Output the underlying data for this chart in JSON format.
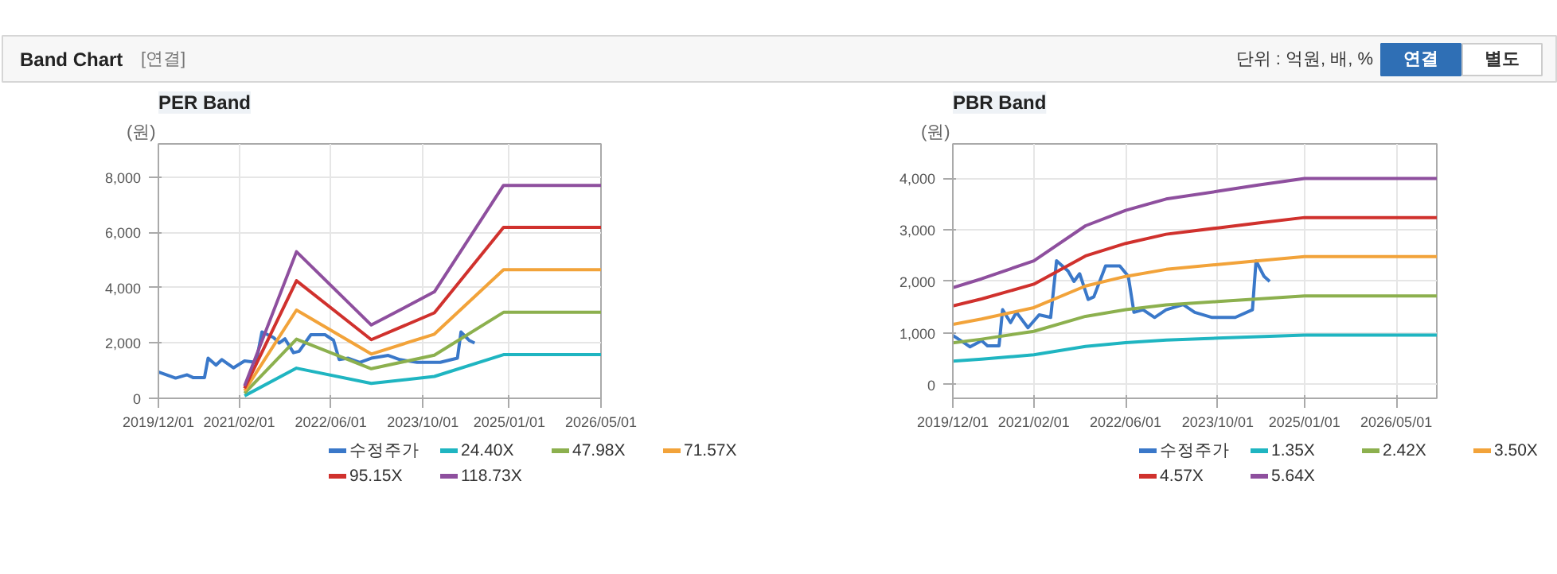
{
  "chart_data": [
    {
      "type": "other",
      "title": "Band Chart",
      "annotations": [
        "[연결]",
        "단위 : 억원, 배, %",
        "연결",
        "별도"
      ]
    },
    {
      "type": "line",
      "title": "PER Band",
      "ylabel": "(원)",
      "grid": true,
      "legend": "bottom",
      "xlim": [
        "2019-12-01",
        "2026-05-01"
      ],
      "ylim": [
        0,
        9200
      ],
      "xticks": [
        {
          "value": "2019-12-01",
          "label": "2019/12/01"
        },
        {
          "value": "2021-02-01",
          "label": "2021/02/01"
        },
        {
          "value": "2022-06-01",
          "label": "2022/06/01"
        },
        {
          "value": "2023-10-01",
          "label": "2023/10/01"
        },
        {
          "value": "2025-01-01",
          "label": "2025/01/01"
        },
        {
          "value": "2026-05-01",
          "label": "2026/05/01"
        }
      ],
      "yticks": [
        0,
        {
          "value": 2000,
          "label": "2,000"
        },
        {
          "value": 4000,
          "label": "4,000"
        },
        {
          "value": 6000,
          "label": "6,000"
        },
        {
          "value": 8000,
          "label": "8,000"
        }
      ],
      "series": [
        {
          "name": "수정주가",
          "color": "#3a78c9",
          "x": [
            "2019-12-01",
            "2020-02-01",
            "2020-03-01",
            "2020-05-01",
            "2020-06-01",
            "2020-08-01",
            "2020-08-20",
            "2020-10-01",
            "2020-11-01",
            "2021-01-01",
            "2021-03-01",
            "2021-05-01",
            "2021-06-01",
            "2021-08-01",
            "2021-09-01",
            "2021-10-01",
            "2021-11-15",
            "2021-12-15",
            "2022-02-15",
            "2022-05-01",
            "2022-06-15",
            "2022-07-15",
            "2022-09-01",
            "2022-11-01",
            "2023-01-01",
            "2023-04-01",
            "2023-06-01",
            "2023-09-01",
            "2024-01-01",
            "2024-04-01",
            "2024-04-20",
            "2024-06-01",
            "2024-07-01"
          ],
          "values": [
            950,
            800,
            730,
            850,
            750,
            750,
            1450,
            1200,
            1400,
            1100,
            1350,
            1300,
            2400,
            2200,
            2000,
            2150,
            1650,
            1700,
            2300,
            2300,
            2100,
            1400,
            1450,
            1300,
            1450,
            1550,
            1400,
            1300,
            1300,
            1450,
            2400,
            2100,
            2000
          ]
        },
        {
          "name": "24.40X",
          "color": "#1fb5c1",
          "x": [
            "2021-03-01",
            "2021-12-01",
            "2023-01-01",
            "2023-12-01",
            "2024-12-01",
            "2026-05-01"
          ],
          "values": [
            90,
            1090,
            540,
            790,
            1580,
            1580
          ]
        },
        {
          "name": "47.98X",
          "color": "#8cb04e",
          "x": [
            "2021-03-01",
            "2021-12-01",
            "2023-01-01",
            "2023-12-01",
            "2024-12-01",
            "2026-05-01"
          ],
          "values": [
            180,
            2140,
            1070,
            1560,
            3110,
            3110
          ]
        },
        {
          "name": "71.57X",
          "color": "#f2a33a",
          "x": [
            "2021-03-01",
            "2021-12-01",
            "2023-01-01",
            "2023-12-01",
            "2024-12-01",
            "2026-05-01"
          ],
          "values": [
            270,
            3190,
            1600,
            2320,
            4650,
            4650
          ]
        },
        {
          "name": "95.15X",
          "color": "#d0312d",
          "x": [
            "2021-03-01",
            "2021-12-01",
            "2023-01-01",
            "2023-12-01",
            "2024-12-01",
            "2026-05-01"
          ],
          "values": [
            360,
            4250,
            2120,
            3090,
            6180,
            6180
          ]
        },
        {
          "name": "118.73X",
          "color": "#8e4f9e",
          "x": [
            "2021-03-01",
            "2021-12-01",
            "2023-01-01",
            "2023-12-01",
            "2024-12-01",
            "2026-05-01"
          ],
          "values": [
            450,
            5300,
            2650,
            3850,
            7700,
            7700
          ]
        }
      ]
    },
    {
      "type": "line",
      "title": "PBR Band",
      "ylabel": "(원)",
      "grid": true,
      "legend": "bottom",
      "xlim": [
        "2019-12-01",
        "2026-12-01"
      ],
      "ylim": [
        -270,
        4670
      ],
      "xticks": [
        {
          "value": "2019-12-01",
          "label": "2019/12/01"
        },
        {
          "value": "2021-02-01",
          "label": "2021/02/01"
        },
        {
          "value": "2022-06-01",
          "label": "2022/06/01"
        },
        {
          "value": "2023-10-01",
          "label": "2023/10/01"
        },
        {
          "value": "2025-01-01",
          "label": "2025/01/01"
        },
        {
          "value": "2026-05-01",
          "label": "2026/05/01"
        }
      ],
      "yticks": [
        0,
        {
          "value": 1000,
          "label": "1,000"
        },
        {
          "value": 2000,
          "label": "2,000"
        },
        {
          "value": 3000,
          "label": "3,000"
        },
        {
          "value": 4000,
          "label": "4,000"
        }
      ],
      "series": [
        {
          "name": "수정주가",
          "color": "#3a78c9",
          "x": [
            "2019-12-01",
            "2020-02-01",
            "2020-03-01",
            "2020-05-01",
            "2020-06-01",
            "2020-08-01",
            "2020-08-20",
            "2020-10-01",
            "2020-11-01",
            "2021-01-01",
            "2021-03-01",
            "2021-05-01",
            "2021-06-01",
            "2021-08-01",
            "2021-09-01",
            "2021-10-01",
            "2021-11-15",
            "2021-12-15",
            "2022-02-15",
            "2022-05-01",
            "2022-06-15",
            "2022-07-15",
            "2022-09-01",
            "2022-11-01",
            "2023-01-01",
            "2023-04-01",
            "2023-06-01",
            "2023-09-01",
            "2024-01-01",
            "2024-04-01",
            "2024-04-20",
            "2024-06-01",
            "2024-07-01"
          ],
          "values": [
            950,
            800,
            730,
            850,
            750,
            750,
            1450,
            1200,
            1400,
            1100,
            1350,
            1300,
            2400,
            2200,
            2000,
            2150,
            1650,
            1700,
            2300,
            2300,
            2100,
            1400,
            1450,
            1300,
            1450,
            1550,
            1400,
            1300,
            1300,
            1450,
            2400,
            2100,
            2000
          ]
        },
        {
          "name": "1.35X",
          "color": "#1fb5c1",
          "x": [
            "2019-12-01",
            "2020-05-01",
            "2021-02-01",
            "2021-11-01",
            "2022-06-01",
            "2023-01-01",
            "2023-10-01",
            "2024-05-01",
            "2025-01-01",
            "2026-12-01"
          ],
          "values": [
            450,
            490,
            575,
            737,
            809,
            861,
            898,
            926,
            957,
            957
          ]
        },
        {
          "name": "2.42X",
          "color": "#8cb04e",
          "x": [
            "2019-12-01",
            "2020-05-01",
            "2021-02-01",
            "2021-11-01",
            "2022-06-01",
            "2023-01-01",
            "2023-10-01",
            "2024-05-01",
            "2025-01-01",
            "2026-12-01"
          ],
          "values": [
            806,
            878,
            1031,
            1321,
            1450,
            1544,
            1609,
            1660,
            1716,
            1716
          ]
        },
        {
          "name": "3.50X",
          "color": "#f2a33a",
          "x": [
            "2019-12-01",
            "2020-05-01",
            "2021-02-01",
            "2021-11-01",
            "2022-06-01",
            "2023-01-01",
            "2023-10-01",
            "2024-05-01",
            "2025-01-01",
            "2026-12-01"
          ],
          "values": [
            1166,
            1271,
            1491,
            1911,
            2097,
            2233,
            2328,
            2401,
            2482,
            2482
          ]
        },
        {
          "name": "4.57X",
          "color": "#d0312d",
          "x": [
            "2019-12-01",
            "2020-05-01",
            "2021-02-01",
            "2021-11-01",
            "2022-06-01",
            "2023-01-01",
            "2023-10-01",
            "2024-05-01",
            "2025-01-01",
            "2026-12-01"
          ],
          "values": [
            1522,
            1659,
            1947,
            2495,
            2737,
            2916,
            3039,
            3135,
            3240,
            3240
          ]
        },
        {
          "name": "5.64X",
          "color": "#8e4f9e",
          "x": [
            "2019-12-01",
            "2020-05-01",
            "2021-02-01",
            "2021-11-01",
            "2022-06-01",
            "2023-01-01",
            "2023-10-01",
            "2024-05-01",
            "2025-01-01",
            "2026-12-01"
          ],
          "values": [
            1880,
            2050,
            2400,
            3080,
            3380,
            3600,
            3750,
            3870,
            4000,
            4000
          ]
        }
      ]
    }
  ]
}
